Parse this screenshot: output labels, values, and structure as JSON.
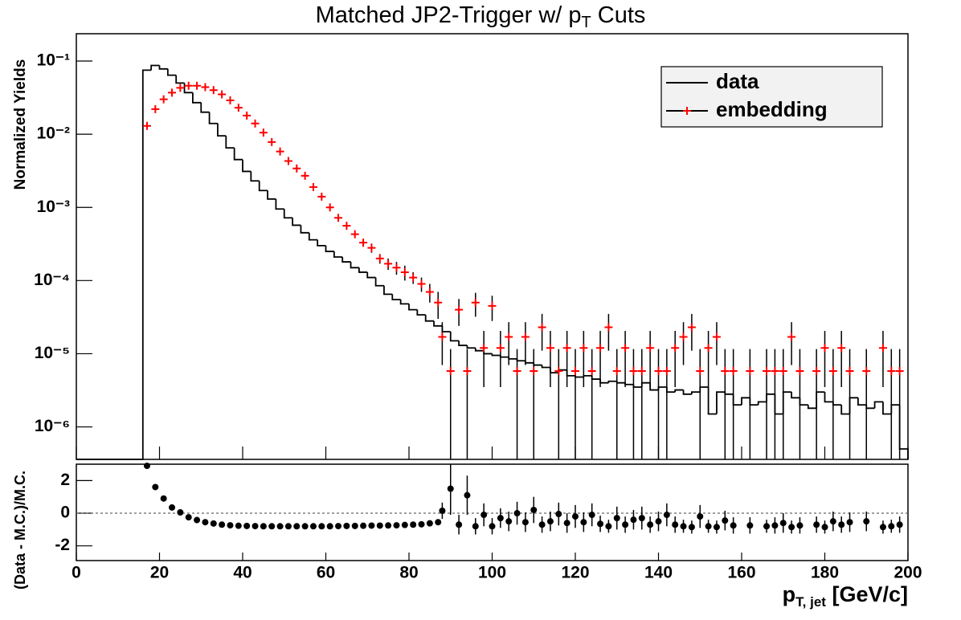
{
  "chart_data": [
    {
      "type": "histogram",
      "title": [
        "Matched JP2-Trigger w/ p",
        "T",
        " Cuts"
      ],
      "y_label": "Normalized Yields",
      "xlim": [
        0,
        200
      ],
      "xticks": [
        0,
        20,
        40,
        60,
        80,
        100,
        120,
        140,
        160,
        180,
        200
      ],
      "ylim": [
        3.6e-07,
        0.236
      ],
      "log_y": true,
      "yticks": [
        {
          "value": 1e-06,
          "label": "10⁻⁶"
        },
        {
          "value": 1e-05,
          "label": "10⁻⁵"
        },
        {
          "value": 0.0001,
          "label": "10⁻⁴"
        },
        {
          "value": 0.001,
          "label": "10⁻³"
        },
        {
          "value": 0.01,
          "label": "10⁻²"
        },
        {
          "value": 0.1,
          "label": "10⁻¹"
        }
      ],
      "legend": "upper right",
      "series": [
        {
          "name": "data",
          "color": "#000000",
          "bins": [
            16,
            18,
            20,
            22,
            24,
            26,
            28,
            30,
            32,
            34,
            36,
            38,
            40,
            42,
            44,
            46,
            48,
            50,
            52,
            54,
            56,
            58,
            60,
            62,
            64,
            66,
            68,
            70,
            72,
            74,
            76,
            78,
            80,
            82,
            84,
            86,
            88,
            90,
            92,
            94,
            96,
            98,
            100,
            102,
            104,
            106,
            108,
            110,
            112,
            114,
            116,
            118,
            120,
            122,
            124,
            126,
            128,
            130,
            132,
            134,
            136,
            138,
            140,
            142,
            144,
            146,
            148,
            150,
            152,
            154,
            156,
            158,
            160,
            162,
            164,
            166,
            168,
            170,
            172,
            174,
            176,
            178,
            180,
            182,
            184,
            186,
            188,
            190,
            192,
            194,
            196,
            198,
            200
          ],
          "values": [
            0.075,
            0.087,
            0.078,
            0.064,
            0.05,
            0.037,
            0.027,
            0.02,
            0.014,
            0.0095,
            0.0065,
            0.0045,
            0.0031,
            0.0023,
            0.0017,
            0.0013,
            0.00095,
            0.00072,
            0.00057,
            0.00045,
            0.00036,
            0.0003,
            0.00025,
            0.00021,
            0.00018,
            0.00015,
            0.00013,
            0.00011,
            8.5e-05,
            6.5e-05,
            5.5e-05,
            4.8e-05,
            4e-05,
            3.4e-05,
            2.8e-05,
            2.4e-05,
            2e-05,
            1.5e-05,
            1.3e-05,
            1.2e-05,
            1.1e-05,
            1e-05,
            9.5e-06,
            9e-06,
            8.5e-06,
            8e-06,
            7.5e-06,
            7e-06,
            6.5e-06,
            5.5e-06,
            6e-06,
            5e-06,
            4.8e-06,
            5e-06,
            4.5e-06,
            4e-06,
            4.2e-06,
            4e-06,
            3.8e-06,
            3.5e-06,
            4e-06,
            3.2e-06,
            3.5e-06,
            3e-06,
            3.2e-06,
            2.8e-06,
            3e-06,
            3.5e-06,
            1.5e-06,
            3e-06,
            2.8e-06,
            2e-06,
            2.5e-06,
            2e-06,
            2.2e-06,
            2.8e-06,
            1.5e-06,
            3e-06,
            2.5e-06,
            2e-06,
            1.8e-06,
            3e-06,
            2.2e-06,
            2e-06,
            1.5e-06,
            2.5e-06,
            2e-06,
            1.8e-06,
            2.2e-06,
            1.5e-06,
            2e-06,
            5e-07
          ]
        },
        {
          "name": "embedding",
          "color": "#ff0000",
          "x": [
            17,
            19,
            21,
            23,
            25,
            27,
            29,
            31,
            33,
            35,
            37,
            39,
            41,
            43,
            45,
            47,
            49,
            51,
            53,
            55,
            57,
            59,
            61,
            63,
            65,
            67,
            69,
            71,
            73,
            75,
            77,
            79,
            81,
            83,
            85,
            87,
            88,
            90,
            92,
            94,
            96,
            98,
            100,
            102,
            104,
            106,
            108,
            110,
            112,
            114,
            116,
            118,
            120,
            122,
            124,
            126,
            128,
            130,
            132,
            134,
            136,
            138,
            140,
            142,
            144,
            146,
            148,
            150,
            152,
            154,
            156,
            158,
            162,
            166,
            168,
            170,
            172,
            174,
            178,
            180,
            182,
            184,
            186,
            190,
            194,
            196,
            198
          ],
          "values": [
            0.013,
            0.022,
            0.03,
            0.037,
            0.043,
            0.046,
            0.046,
            0.044,
            0.04,
            0.035,
            0.029,
            0.023,
            0.018,
            0.014,
            0.0105,
            0.0078,
            0.0058,
            0.0043,
            0.0034,
            0.0027,
            0.0019,
            0.0014,
            0.001,
            0.00072,
            0.00056,
            0.00043,
            0.00033,
            0.00028,
            0.0002,
            0.00017,
            0.00015,
            0.00013,
            0.00011,
            9e-05,
            7e-05,
            5e-05,
            1.7e-05,
            5.8e-06,
            4e-05,
            5.8e-06,
            5e-05,
            1.2e-05,
            4.5e-05,
            1.2e-05,
            1.7e-05,
            5.8e-06,
            1.7e-05,
            5.8e-06,
            2.3e-05,
            1.2e-05,
            5.8e-06,
            1.2e-05,
            5.8e-06,
            1.2e-05,
            5.8e-06,
            1.2e-05,
            2.3e-05,
            5.8e-06,
            1.2e-05,
            5.8e-06,
            5.8e-06,
            1.2e-05,
            5.8e-06,
            5.8e-06,
            1.2e-05,
            1.7e-05,
            2.3e-05,
            5.8e-06,
            1.2e-05,
            1.7e-05,
            5.8e-06,
            5.8e-06,
            5.8e-06,
            5.8e-06,
            5.8e-06,
            5.8e-06,
            1.7e-05,
            5.8e-06,
            5.8e-06,
            1.2e-05,
            5.8e-06,
            1.2e-05,
            5.8e-06,
            5.8e-06,
            1.2e-05,
            5.8e-06,
            5.8e-06
          ],
          "errors": [
            0.0004,
            0.0005,
            0.0006,
            0.0007,
            0.0008,
            0.0008,
            0.0008,
            0.0008,
            0.0007,
            0.0007,
            0.0006,
            0.0005,
            0.0004,
            0.0004,
            0.0003,
            0.0003,
            0.0002,
            0.0002,
            0.0002,
            0.0002,
            0.0001,
            0.0001,
            8e-05,
            7e-05,
            6e-05,
            5e-05,
            4e-05,
            4e-05,
            3e-05,
            3e-05,
            3e-05,
            3e-05,
            2e-05,
            2e-05,
            2e-05,
            2e-05,
            1e-05,
            5.8e-06,
            1.6e-05,
            5.8e-06,
            1.8e-05,
            8.5e-06,
            1.7e-05,
            8.5e-06,
            1e-05,
            5.8e-06,
            1e-05,
            5.8e-06,
            1.2e-05,
            8.5e-06,
            5.8e-06,
            8.5e-06,
            5.8e-06,
            8.5e-06,
            5.8e-06,
            8.5e-06,
            1.2e-05,
            5.8e-06,
            8.5e-06,
            5.8e-06,
            5.8e-06,
            8.5e-06,
            5.8e-06,
            5.8e-06,
            8.5e-06,
            1e-05,
            1.2e-05,
            5.8e-06,
            8.5e-06,
            1e-05,
            5.8e-06,
            5.8e-06,
            5.8e-06,
            5.8e-06,
            5.8e-06,
            5.8e-06,
            1e-05,
            5.8e-06,
            5.8e-06,
            8.5e-06,
            5.8e-06,
            8.5e-06,
            5.8e-06,
            5.8e-06,
            8.5e-06,
            5.8e-06,
            5.8e-06
          ]
        }
      ]
    },
    {
      "type": "scatter",
      "x_label": [
        "p",
        "T, jet",
        " [GeV/c]"
      ],
      "y_label": "(Data - M.C.)/M.C.",
      "xlim": [
        0,
        200
      ],
      "xticks": [
        0,
        20,
        40,
        60,
        80,
        100,
        120,
        140,
        160,
        180,
        200
      ],
      "ylim": [
        -2.9,
        3.0
      ],
      "yticks": [
        -2,
        0,
        2
      ],
      "color": "#000000",
      "x": [
        17,
        19,
        21,
        23,
        25,
        27,
        29,
        31,
        33,
        35,
        37,
        39,
        41,
        43,
        45,
        47,
        49,
        51,
        53,
        55,
        57,
        59,
        61,
        63,
        65,
        67,
        69,
        71,
        73,
        75,
        77,
        79,
        81,
        83,
        85,
        87,
        88,
        90,
        92,
        94,
        96,
        98,
        100,
        102,
        104,
        106,
        108,
        110,
        112,
        114,
        116,
        118,
        120,
        122,
        124,
        126,
        128,
        130,
        132,
        134,
        136,
        138,
        140,
        142,
        144,
        146,
        148,
        150,
        152,
        154,
        156,
        158,
        162,
        166,
        168,
        170,
        172,
        174,
        178,
        180,
        182,
        184,
        186,
        190,
        194,
        196,
        198
      ],
      "values": [
        2.9,
        1.6,
        0.9,
        0.35,
        0.05,
        -0.25,
        -0.42,
        -0.55,
        -0.63,
        -0.7,
        -0.74,
        -0.77,
        -0.78,
        -0.79,
        -0.8,
        -0.8,
        -0.8,
        -0.8,
        -0.8,
        -0.8,
        -0.8,
        -0.8,
        -0.8,
        -0.79,
        -0.78,
        -0.78,
        -0.77,
        -0.76,
        -0.76,
        -0.75,
        -0.74,
        -0.72,
        -0.7,
        -0.68,
        -0.62,
        -0.55,
        0.15,
        1.5,
        -0.7,
        1.1,
        -0.8,
        -0.1,
        -0.8,
        -0.3,
        -0.5,
        0.0,
        -0.55,
        0.2,
        -0.7,
        -0.5,
        -0.05,
        -0.6,
        -0.2,
        -0.55,
        -0.1,
        -0.65,
        -0.8,
        -0.3,
        -0.7,
        -0.4,
        -0.3,
        -0.7,
        -0.5,
        -0.1,
        -0.7,
        -0.8,
        -0.85,
        -0.2,
        -0.8,
        -0.85,
        -0.45,
        -0.75,
        -0.75,
        -0.8,
        -0.75,
        -0.6,
        -0.85,
        -0.75,
        -0.7,
        -0.85,
        -0.5,
        -0.7,
        -0.55,
        -0.5,
        -0.85,
        -0.8,
        -0.7
      ],
      "errors": [
        0.1,
        0.05,
        0.03,
        0.02,
        0.02,
        0.02,
        0.01,
        0.01,
        0.01,
        0.01,
        0.01,
        0.01,
        0.01,
        0.01,
        0.01,
        0.01,
        0.01,
        0.01,
        0.01,
        0.01,
        0.01,
        0.02,
        0.02,
        0.02,
        0.02,
        0.03,
        0.03,
        0.03,
        0.04,
        0.05,
        0.06,
        0.07,
        0.08,
        0.1,
        0.12,
        0.15,
        0.5,
        1.6,
        0.6,
        1.2,
        0.5,
        0.7,
        0.5,
        0.6,
        0.6,
        0.7,
        0.6,
        0.8,
        0.5,
        0.6,
        0.7,
        0.6,
        0.7,
        0.6,
        0.7,
        0.5,
        0.4,
        0.7,
        0.5,
        0.6,
        0.7,
        0.5,
        0.6,
        0.7,
        0.5,
        0.4,
        0.4,
        0.7,
        0.4,
        0.4,
        0.6,
        0.5,
        0.5,
        0.4,
        0.5,
        0.6,
        0.4,
        0.5,
        0.5,
        0.4,
        0.6,
        0.5,
        0.6,
        0.6,
        0.4,
        0.4,
        0.5
      ],
      "reference_line": true
    }
  ]
}
